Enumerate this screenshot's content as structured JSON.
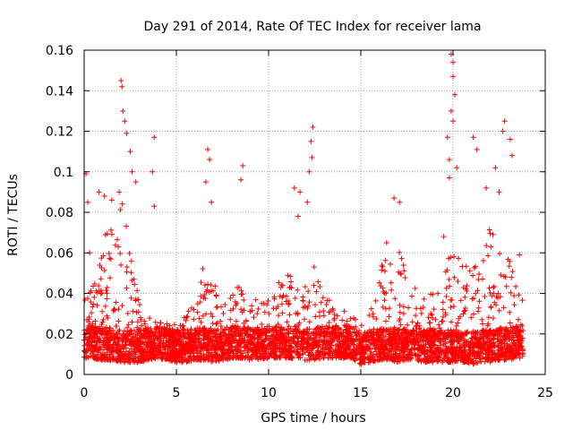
{
  "chart_data": {
    "type": "scatter",
    "title": "Day 291 of 2014, Rate Of TEC Index for receiver lama",
    "xlabel": "GPS time / hours",
    "ylabel": "ROTI / TECUs",
    "xlim": [
      0,
      25
    ],
    "ylim": [
      0,
      0.16
    ],
    "xticks": [
      0,
      5,
      10,
      15,
      20,
      25
    ],
    "xtick_labels": [
      "0",
      "5",
      "10",
      "15",
      "20",
      "25"
    ],
    "yticks": [
      0,
      0.02,
      0.04,
      0.06,
      0.08,
      0.1,
      0.12,
      0.14,
      0.16
    ],
    "ytick_labels": [
      "0",
      "0.02",
      "0.04",
      "0.06",
      "0.08",
      "0.1",
      "0.12",
      "0.14",
      "0.16"
    ],
    "grid": true,
    "marker": "+",
    "marker_color": "#ff0000",
    "data_x_extent": [
      0,
      23.8
    ],
    "series": [
      {
        "name": "ROTI",
        "notable_points": [
          {
            "x": 0.1,
            "y": 0.099
          },
          {
            "x": 0.2,
            "y": 0.085
          },
          {
            "x": 0.3,
            "y": 0.06
          },
          {
            "x": 0.8,
            "y": 0.09
          },
          {
            "x": 1.1,
            "y": 0.088
          },
          {
            "x": 1.5,
            "y": 0.086
          },
          {
            "x": 1.9,
            "y": 0.09
          },
          {
            "x": 2.0,
            "y": 0.145
          },
          {
            "x": 2.05,
            "y": 0.142
          },
          {
            "x": 2.1,
            "y": 0.13
          },
          {
            "x": 2.2,
            "y": 0.125
          },
          {
            "x": 2.3,
            "y": 0.119
          },
          {
            "x": 2.5,
            "y": 0.11
          },
          {
            "x": 2.6,
            "y": 0.1
          },
          {
            "x": 2.8,
            "y": 0.095
          },
          {
            "x": 3.8,
            "y": 0.117
          },
          {
            "x": 3.7,
            "y": 0.1
          },
          {
            "x": 3.8,
            "y": 0.083
          },
          {
            "x": 6.7,
            "y": 0.111
          },
          {
            "x": 6.8,
            "y": 0.106
          },
          {
            "x": 6.6,
            "y": 0.095
          },
          {
            "x": 6.9,
            "y": 0.085
          },
          {
            "x": 8.6,
            "y": 0.103
          },
          {
            "x": 8.5,
            "y": 0.096
          },
          {
            "x": 11.4,
            "y": 0.092
          },
          {
            "x": 11.7,
            "y": 0.09
          },
          {
            "x": 11.6,
            "y": 0.078
          },
          {
            "x": 12.4,
            "y": 0.122
          },
          {
            "x": 12.3,
            "y": 0.115
          },
          {
            "x": 12.35,
            "y": 0.107
          },
          {
            "x": 12.2,
            "y": 0.1
          },
          {
            "x": 12.1,
            "y": 0.085
          },
          {
            "x": 16.8,
            "y": 0.087
          },
          {
            "x": 17.1,
            "y": 0.085
          },
          {
            "x": 16.4,
            "y": 0.065
          },
          {
            "x": 19.5,
            "y": 0.068
          },
          {
            "x": 19.9,
            "y": 0.158
          },
          {
            "x": 20.0,
            "y": 0.154
          },
          {
            "x": 20.0,
            "y": 0.147
          },
          {
            "x": 20.1,
            "y": 0.138
          },
          {
            "x": 19.9,
            "y": 0.13
          },
          {
            "x": 20.0,
            "y": 0.125
          },
          {
            "x": 19.7,
            "y": 0.117
          },
          {
            "x": 19.8,
            "y": 0.106
          },
          {
            "x": 20.2,
            "y": 0.102
          },
          {
            "x": 19.8,
            "y": 0.097
          },
          {
            "x": 21.1,
            "y": 0.117
          },
          {
            "x": 21.3,
            "y": 0.111
          },
          {
            "x": 21.8,
            "y": 0.092
          },
          {
            "x": 22.3,
            "y": 0.102
          },
          {
            "x": 22.8,
            "y": 0.125
          },
          {
            "x": 22.7,
            "y": 0.12
          },
          {
            "x": 23.1,
            "y": 0.116
          },
          {
            "x": 23.2,
            "y": 0.108
          },
          {
            "x": 22.5,
            "y": 0.09
          },
          {
            "x": 23.6,
            "y": 0.059
          }
        ]
      }
    ],
    "envelope": {
      "x": [
        0,
        0.5,
        1,
        1.5,
        2,
        2.5,
        3,
        3.5,
        4,
        4.5,
        5,
        5.5,
        6,
        6.5,
        7,
        7.5,
        8,
        8.5,
        9,
        9.5,
        10,
        10.5,
        11,
        11.5,
        12,
        12.5,
        13,
        13.5,
        14,
        14.5,
        15,
        15.5,
        16,
        16.5,
        17,
        17.5,
        18,
        18.5,
        19,
        19.5,
        20,
        20.5,
        21,
        21.5,
        22,
        22.5,
        23,
        23.5
      ],
      "low": [
        0.008,
        0.008,
        0.007,
        0.007,
        0.006,
        0.006,
        0.006,
        0.007,
        0.008,
        0.007,
        0.006,
        0.006,
        0.007,
        0.007,
        0.006,
        0.007,
        0.008,
        0.008,
        0.007,
        0.007,
        0.008,
        0.008,
        0.008,
        0.008,
        0.007,
        0.007,
        0.008,
        0.008,
        0.008,
        0.008,
        0.005,
        0.006,
        0.007,
        0.007,
        0.006,
        0.007,
        0.007,
        0.006,
        0.006,
        0.006,
        0.006,
        0.006,
        0.005,
        0.006,
        0.006,
        0.007,
        0.007,
        0.008
      ],
      "typical": [
        0.04,
        0.045,
        0.065,
        0.08,
        0.09,
        0.06,
        0.035,
        0.03,
        0.03,
        0.028,
        0.025,
        0.03,
        0.035,
        0.06,
        0.05,
        0.035,
        0.04,
        0.045,
        0.035,
        0.04,
        0.04,
        0.045,
        0.05,
        0.05,
        0.045,
        0.06,
        0.04,
        0.035,
        0.035,
        0.03,
        0.025,
        0.03,
        0.055,
        0.06,
        0.065,
        0.05,
        0.045,
        0.04,
        0.04,
        0.05,
        0.065,
        0.055,
        0.06,
        0.07,
        0.075,
        0.07,
        0.06,
        0.04
      ]
    }
  }
}
